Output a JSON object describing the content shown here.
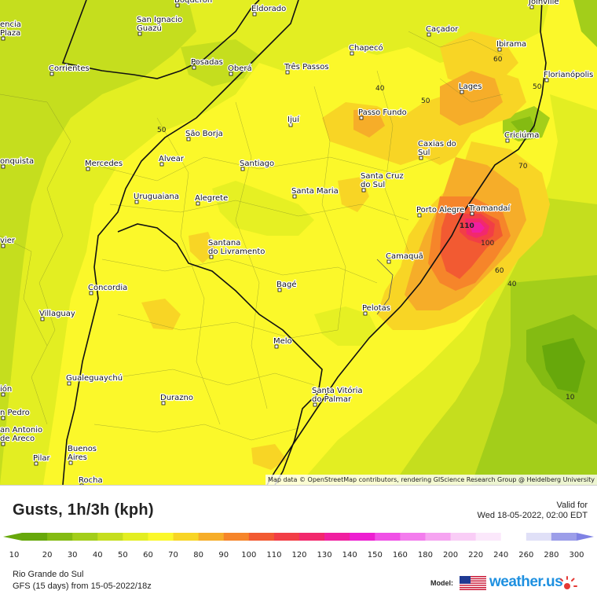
{
  "map": {
    "attribution": "Map data © OpenStreetMap contributors, rendering GIScience Research Group @ Heidelberg University",
    "cities": [
      {
        "name": "Boqueron",
        "lines": [
          "Boqueron"
        ]
      },
      {
        "name": "Eldorado",
        "lines": [
          "Eldorado"
        ]
      },
      {
        "name": "Joinville",
        "lines": [
          "Joinville"
        ]
      },
      {
        "name": "Encarnacion Plaza",
        "lines": [
          "encia",
          "Plaza"
        ]
      },
      {
        "name": "San Ignacio Guazu",
        "lines": [
          "San Ignacio",
          "Guazú"
        ]
      },
      {
        "name": "Cacador",
        "lines": [
          "Caçador"
        ]
      },
      {
        "name": "Chapeco",
        "lines": [
          "Chapecó"
        ]
      },
      {
        "name": "Ibirama",
        "lines": [
          "Ibirama"
        ]
      },
      {
        "name": "Corrientes",
        "lines": [
          "Corrientes"
        ]
      },
      {
        "name": "Posadas",
        "lines": [
          "Posadas"
        ]
      },
      {
        "name": "Obera",
        "lines": [
          "Oberá"
        ]
      },
      {
        "name": "Tres Passos",
        "lines": [
          "Três Passos"
        ]
      },
      {
        "name": "Florianopolis",
        "lines": [
          "Florianópolis"
        ]
      },
      {
        "name": "Lages",
        "lines": [
          "Lages"
        ]
      },
      {
        "name": "Passo Fundo",
        "lines": [
          "Passo Fundo"
        ]
      },
      {
        "name": "Ijui",
        "lines": [
          "Ijuí"
        ]
      },
      {
        "name": "Sao Borja",
        "lines": [
          "São Borja"
        ]
      },
      {
        "name": "Criciuma",
        "lines": [
          "Criciúma"
        ]
      },
      {
        "name": "Alvear",
        "lines": [
          "Alvear"
        ]
      },
      {
        "name": "Caxias do Sul",
        "lines": [
          "Caxias do",
          "Sul"
        ]
      },
      {
        "name": "Conquista",
        "lines": [
          "onquista"
        ]
      },
      {
        "name": "Mercedes",
        "lines": [
          "Mercedes"
        ]
      },
      {
        "name": "Santiago",
        "lines": [
          "Santiago"
        ]
      },
      {
        "name": "Santa Cruz do Sul",
        "lines": [
          "Santa Cruz",
          "do Sul"
        ]
      },
      {
        "name": "Santa Maria",
        "lines": [
          "Santa Maria"
        ]
      },
      {
        "name": "Uruguaiana",
        "lines": [
          "Uruguaiana"
        ]
      },
      {
        "name": "Alegrete",
        "lines": [
          "Alegrete"
        ]
      },
      {
        "name": "Porto Alegre",
        "lines": [
          "Porto Alegre"
        ]
      },
      {
        "name": "Tramandai",
        "lines": [
          "Tramandaí"
        ]
      },
      {
        "name": "Vier",
        "lines": [
          "vier"
        ]
      },
      {
        "name": "Santana do Livramento",
        "lines": [
          "Santana",
          "do Livramento"
        ]
      },
      {
        "name": "Camaqua",
        "lines": [
          "Camaquã"
        ]
      },
      {
        "name": "Bage",
        "lines": [
          "Bagé"
        ]
      },
      {
        "name": "Concordia",
        "lines": [
          "Concordia"
        ]
      },
      {
        "name": "Pelotas",
        "lines": [
          "Pelotas"
        ]
      },
      {
        "name": "Villaguay",
        "lines": [
          "Villaguay"
        ]
      },
      {
        "name": "Melo",
        "lines": [
          "Melo"
        ]
      },
      {
        "name": "Gualeguaychu",
        "lines": [
          "Gualeguaychú"
        ]
      },
      {
        "name": "Union",
        "lines": [
          "ión"
        ]
      },
      {
        "name": "Durazno",
        "lines": [
          "Durazno"
        ]
      },
      {
        "name": "Santa Vitoria do Palmar",
        "lines": [
          "Santa Vitória",
          "do Palmar"
        ]
      },
      {
        "name": "San Pedro",
        "lines": [
          "n Pedro"
        ]
      },
      {
        "name": "San Antonio de Areco",
        "lines": [
          "an Antonio",
          "de Areco"
        ]
      },
      {
        "name": "Pilar",
        "lines": [
          "Pilar"
        ]
      },
      {
        "name": "Buenos Aires",
        "lines": [
          "Buenos",
          "Aires"
        ]
      },
      {
        "name": "Rocha",
        "lines": [
          "Rocha"
        ]
      }
    ],
    "contour_labels": [
      "50",
      "40",
      "50",
      "60",
      "50",
      "70",
      "100",
      "60",
      "40",
      "10",
      "110"
    ]
  },
  "legend": {
    "title": "Gusts, 1h/3h (kph)",
    "valid_label": "Valid for",
    "valid_time": "Wed 18-05-2022, 02:00 EDT",
    "scale": [
      {
        "value": "10",
        "color": "#67a80b"
      },
      {
        "value": "20",
        "color": "#84bb12"
      },
      {
        "value": "30",
        "color": "#a3ce1a"
      },
      {
        "value": "40",
        "color": "#c5de1e"
      },
      {
        "value": "50",
        "color": "#e3ee22"
      },
      {
        "value": "60",
        "color": "#fbf82a"
      },
      {
        "value": "70",
        "color": "#f8d525"
      },
      {
        "value": "80",
        "color": "#f6ad29"
      },
      {
        "value": "90",
        "color": "#f6852a"
      },
      {
        "value": "100",
        "color": "#f25a32"
      },
      {
        "value": "110",
        "color": "#f23e46"
      },
      {
        "value": "120",
        "color": "#f2286d"
      },
      {
        "value": "130",
        "color": "#f01fa0"
      },
      {
        "value": "140",
        "color": "#ed1ed1"
      },
      {
        "value": "150",
        "color": "#f050e6"
      },
      {
        "value": "160",
        "color": "#f37ced"
      },
      {
        "value": "180",
        "color": "#f6a4f1"
      },
      {
        "value": "200",
        "color": "#f9cdf6"
      },
      {
        "value": "220",
        "color": "#fbe8fb"
      },
      {
        "value": "240",
        "color": "#ffffff"
      },
      {
        "value": "260",
        "color": "#e0e0f7"
      },
      {
        "value": "280",
        "color": "#c3c4f1"
      },
      {
        "value": "300",
        "color": "#9c9ee9"
      }
    ],
    "extra_color": "#7f82e4",
    "region": "Rio Grande do Sul",
    "model_run": "GFS (15 days) from  15-05-2022/18z",
    "model_label": "Model:",
    "brand": "weather.us"
  }
}
